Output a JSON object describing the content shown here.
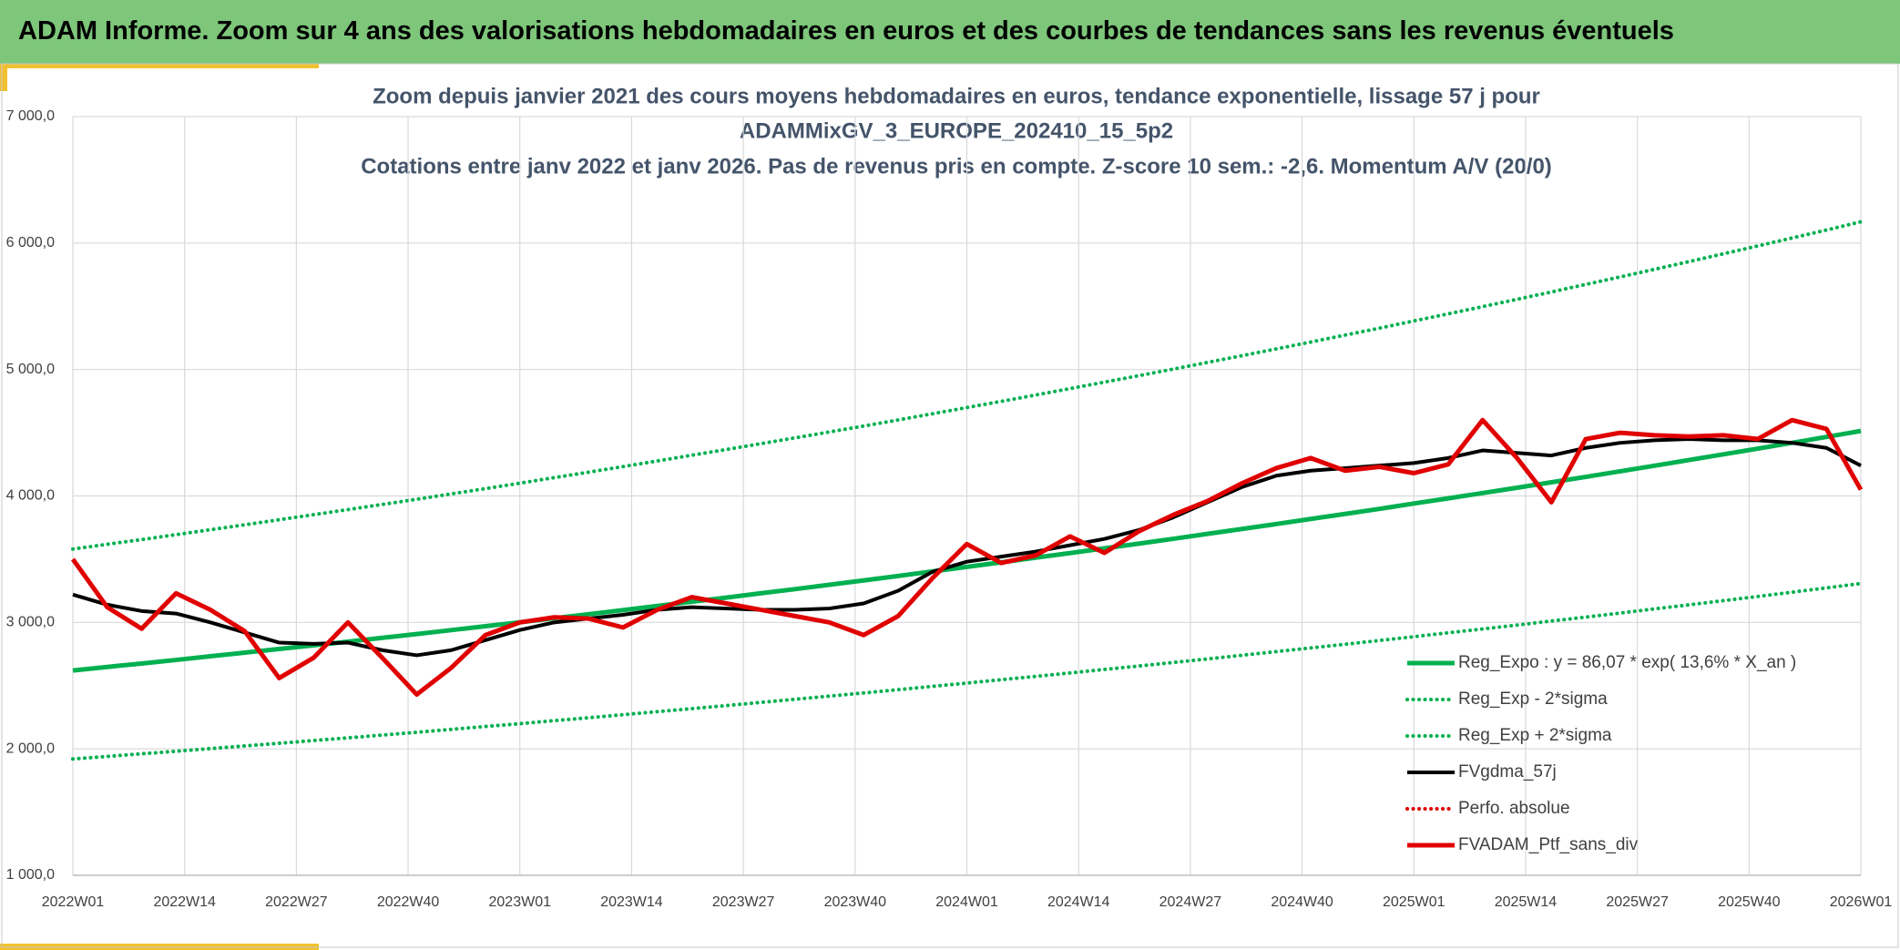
{
  "header": {
    "title": "ADAM Informe. Zoom sur 4 ans des valorisations hebdomadaires en euros et des courbes de tendances sans les revenus éventuels"
  },
  "chart_data": {
    "type": "line",
    "title": [
      "Zoom depuis janvier 2021 des cours moyens hebdomadaires en euros, tendance exponentielle, lissage 57 j pour",
      "ADAMMixGV_3_EUROPE_202410_15_5p2",
      "Cotations entre janv 2022 et janv 2026. Pas de revenus pris en compte. Z-score 10 sem.: -2,6. Momentum A/V (20/0)"
    ],
    "x": [
      0,
      4,
      8,
      12,
      16,
      20,
      24,
      28,
      32,
      36,
      40,
      44,
      48,
      52,
      56,
      60,
      64,
      68,
      72,
      76,
      80,
      84,
      88,
      92,
      96,
      100,
      104,
      108,
      112,
      116,
      120,
      124,
      128,
      132,
      136,
      140,
      144,
      148,
      152,
      156,
      160,
      164,
      168,
      172,
      176,
      180,
      184,
      188,
      192,
      196,
      200,
      204,
      208
    ],
    "xlim": [
      0,
      208
    ],
    "xticks": [
      {
        "value": 0,
        "label": "2022W01"
      },
      {
        "value": 13,
        "label": "2022W14"
      },
      {
        "value": 26,
        "label": "2022W27"
      },
      {
        "value": 39,
        "label": "2022W40"
      },
      {
        "value": 52,
        "label": "2023W01"
      },
      {
        "value": 65,
        "label": "2023W14"
      },
      {
        "value": 78,
        "label": "2023W27"
      },
      {
        "value": 91,
        "label": "2023W40"
      },
      {
        "value": 104,
        "label": "2024W01"
      },
      {
        "value": 117,
        "label": "2024W14"
      },
      {
        "value": 130,
        "label": "2024W27"
      },
      {
        "value": 143,
        "label": "2024W40"
      },
      {
        "value": 156,
        "label": "2025W01"
      },
      {
        "value": 169,
        "label": "2025W14"
      },
      {
        "value": 182,
        "label": "2025W27"
      },
      {
        "value": 195,
        "label": "2025W40"
      },
      {
        "value": 208,
        "label": "2026W01"
      }
    ],
    "ylim": [
      1000,
      7000
    ],
    "yticks": [
      {
        "value": 1000,
        "label": "1 000,0"
      },
      {
        "value": 2000,
        "label": "2 000,0"
      },
      {
        "value": 3000,
        "label": "3 000,0"
      },
      {
        "value": 4000,
        "label": "4 000,0"
      },
      {
        "value": 5000,
        "label": "5 000,0"
      },
      {
        "value": 6000,
        "label": "6 000,0"
      },
      {
        "value": 7000,
        "label": "7 000,0"
      }
    ],
    "grid": true,
    "legend": "lower-right",
    "series": [
      {
        "name": "Reg_Expo : y = 86,07 * exp( 13,6% *  X_an )",
        "color": "#00b050",
        "style": "solid",
        "width": 5,
        "values": [
          2620,
          2648,
          2675,
          2703,
          2732,
          2761,
          2790,
          2819,
          2848,
          2878,
          2908,
          2939,
          2970,
          3001,
          3033,
          3065,
          3097,
          3130,
          3163,
          3196,
          3230,
          3263,
          3298,
          3332,
          3367,
          3403,
          3439,
          3475,
          3512,
          3548,
          3586,
          3623,
          3661,
          3700,
          3739,
          3778,
          3818,
          3858,
          3898,
          3940,
          3981,
          4023,
          4065,
          4108,
          4151,
          4195,
          4239,
          4284,
          4329,
          4374,
          4420,
          4467,
          4514
        ]
      },
      {
        "name": "Reg_Exp - 2*sigma",
        "color": "#00b050",
        "style": "dotted",
        "width": 4,
        "values": [
          1920,
          1940,
          1961,
          1981,
          2002,
          2023,
          2044,
          2066,
          2087,
          2109,
          2131,
          2154,
          2177,
          2199,
          2223,
          2246,
          2270,
          2294,
          2318,
          2342,
          2367,
          2392,
          2417,
          2442,
          2468,
          2494,
          2520,
          2547,
          2573,
          2600,
          2628,
          2655,
          2683,
          2711,
          2740,
          2769,
          2798,
          2827,
          2857,
          2887,
          2918,
          2948,
          2979,
          3011,
          3042,
          3074,
          3107,
          3139,
          3172,
          3205,
          3239,
          3273,
          3308
        ]
      },
      {
        "name": "Reg_Exp + 2*sigma",
        "color": "#00b050",
        "style": "dotted",
        "width": 4,
        "values": [
          3580,
          3618,
          3655,
          3694,
          3733,
          3772,
          3812,
          3852,
          3892,
          3933,
          3974,
          4016,
          4058,
          4101,
          4145,
          4188,
          4232,
          4277,
          4322,
          4367,
          4413,
          4459,
          4506,
          4553,
          4601,
          4650,
          4699,
          4748,
          4798,
          4849,
          4900,
          4951,
          5003,
          5056,
          5109,
          5163,
          5217,
          5272,
          5327,
          5384,
          5440,
          5497,
          5555,
          5613,
          5673,
          5732,
          5792,
          5853,
          5915,
          5977,
          6040,
          6103,
          6168
        ]
      },
      {
        "name": "FVgdma_57j",
        "color": "#000000",
        "style": "solid",
        "width": 4,
        "values": [
          3220,
          3140,
          3090,
          3070,
          3000,
          2920,
          2840,
          2830,
          2840,
          2780,
          2740,
          2780,
          2860,
          2940,
          3000,
          3030,
          3060,
          3100,
          3120,
          3110,
          3100,
          3100,
          3110,
          3150,
          3250,
          3400,
          3480,
          3520,
          3560,
          3610,
          3660,
          3730,
          3830,
          3950,
          4070,
          4160,
          4200,
          4220,
          4240,
          4260,
          4300,
          4360,
          4340,
          4320,
          4380,
          4420,
          4440,
          4450,
          4440,
          4440,
          4420,
          4380,
          4240
        ]
      },
      {
        "name": "Perfo. absolue",
        "color": "#e00000",
        "style": "dotted",
        "width": 4,
        "values": [
          null,
          null,
          null,
          null,
          null,
          null,
          null,
          null,
          null,
          null,
          null,
          null,
          null,
          null,
          null,
          null,
          null,
          null,
          null,
          null,
          null,
          null,
          null,
          null,
          null,
          null,
          null,
          null,
          null,
          null,
          null,
          null,
          null,
          null,
          null,
          null,
          null,
          null,
          null,
          null,
          null,
          null,
          null,
          null,
          null,
          null,
          null,
          null,
          null,
          null,
          null,
          null,
          null
        ]
      },
      {
        "name": "FVADAM_Ptf_sans_div",
        "color": "#e00000",
        "style": "solid",
        "width": 5,
        "values": [
          3500,
          3120,
          2950,
          3230,
          3100,
          2930,
          2560,
          2720,
          3000,
          2720,
          2430,
          2640,
          2900,
          3000,
          3040,
          3030,
          2960,
          3100,
          3200,
          3150,
          3100,
          3050,
          3000,
          2900,
          3050,
          3350,
          3620,
          3470,
          3530,
          3680,
          3550,
          3720,
          3850,
          3960,
          4100,
          4220,
          4300,
          4200,
          4230,
          4180,
          4250,
          4600,
          4300,
          3950,
          4450,
          4500,
          4480,
          4470,
          4480,
          4450,
          4600,
          4530,
          4050
        ]
      }
    ]
  }
}
